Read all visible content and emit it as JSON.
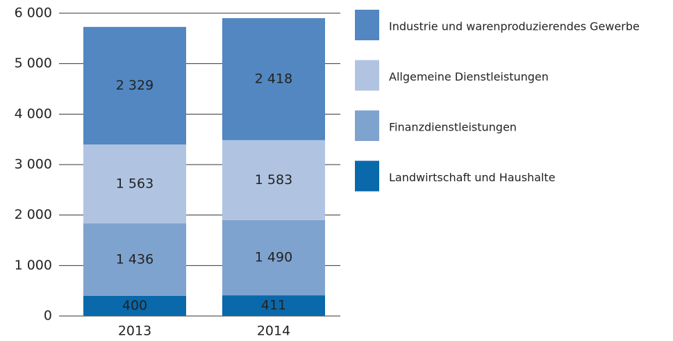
{
  "chart_data": {
    "type": "stacked_bar",
    "categories": [
      "2013",
      "2014"
    ],
    "series": [
      {
        "name": "Landwirtschaft und Haushalte",
        "color": "#0a69ab",
        "values": [
          400,
          411
        ],
        "value_labels": [
          "400",
          "411"
        ]
      },
      {
        "name": "Finanzdienstleistungen",
        "color": "#7fa3cf",
        "values": [
          1436,
          1490
        ],
        "value_labels": [
          "1 436",
          "1 490"
        ]
      },
      {
        "name": "Allgemeine Dienstleistungen",
        "color": "#b0c4e2",
        "values": [
          1563,
          1583
        ],
        "value_labels": [
          "1 563",
          "1 583"
        ]
      },
      {
        "name": "Industrie und warenproduzierendes Gewerbe",
        "color": "#5287c1",
        "values": [
          2329,
          2418
        ],
        "value_labels": [
          "2 329",
          "2 418"
        ]
      }
    ],
    "ylim": [
      0,
      6000
    ],
    "yticks": [
      {
        "value": 0,
        "label": "0"
      },
      {
        "value": 1000,
        "label": "1 000"
      },
      {
        "value": 2000,
        "label": "2 000"
      },
      {
        "value": 3000,
        "label": "3 000"
      },
      {
        "value": 4000,
        "label": "4 000"
      },
      {
        "value": 5000,
        "label": "5 000"
      },
      {
        "value": 6000,
        "label": "6 000"
      }
    ],
    "grid": true
  }
}
